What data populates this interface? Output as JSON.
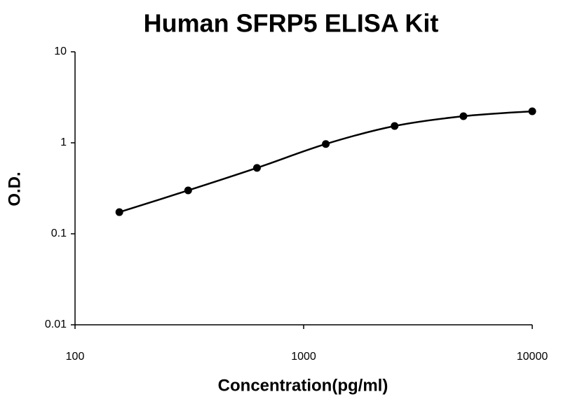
{
  "chart_data": {
    "type": "scatter",
    "title": "Human SFRP5 ELISA Kit",
    "x_label": "Concentration(pg/ml)",
    "y_label": "O.D.",
    "x": [
      156.25,
      312.5,
      625,
      1250,
      2500,
      5000,
      10000
    ],
    "series": [
      {
        "color": "#000000",
        "values": [
          0.173,
          0.3,
          0.53,
          0.97,
          1.53,
          1.96,
          2.22
        ]
      }
    ],
    "xscale": "log",
    "yscale": "log",
    "xlim": [
      100,
      10000
    ],
    "xticks": [
      100,
      1000,
      10000
    ],
    "ylim": [
      0.01,
      10
    ],
    "yticks": [
      0.01,
      0.1,
      1,
      10
    ],
    "fit_curve": true
  }
}
